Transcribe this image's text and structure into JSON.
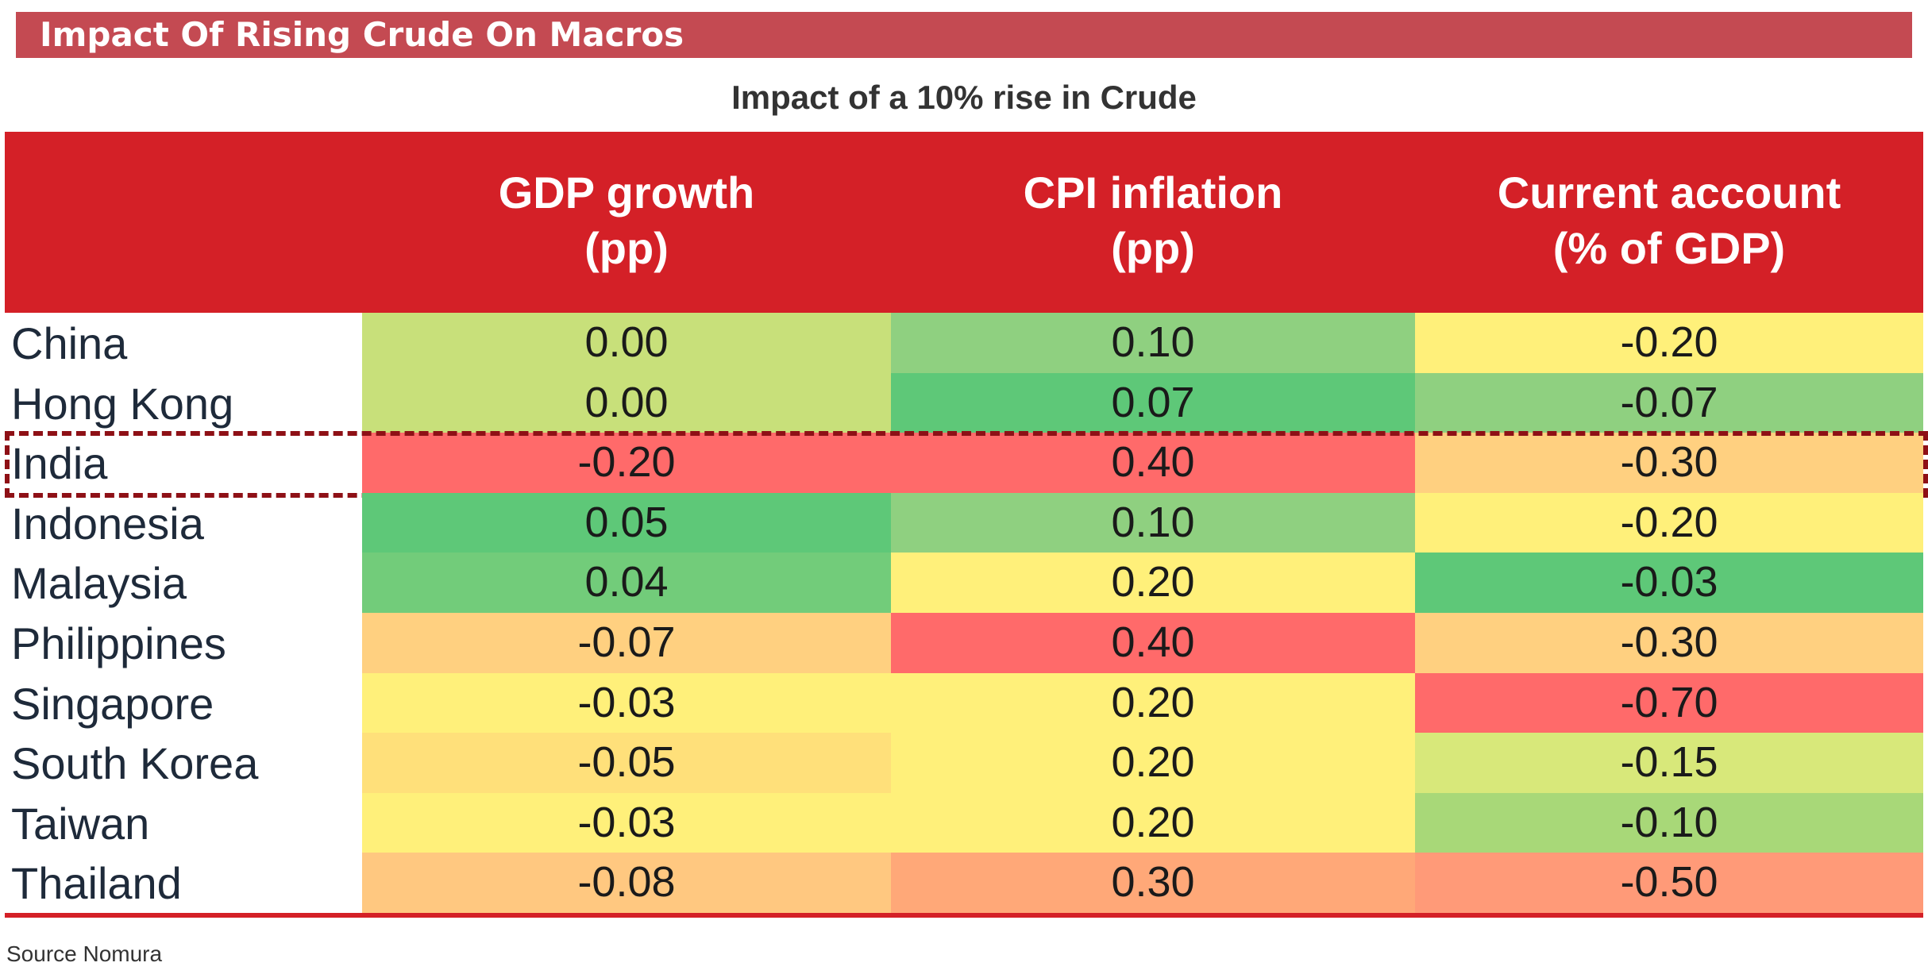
{
  "banner": {
    "title": "Impact Of Rising Crude On Macros"
  },
  "subtitle": "Impact of a 10% rise in Crude",
  "source": "Source Nomura",
  "colors": {
    "header_bg": "#d42027",
    "banner_bg": "#c44a52",
    "highlight_border": "#8e1016"
  },
  "highlighted_row": "India",
  "chart_data": {
    "type": "table",
    "title": "Impact of a 10% rise in Crude",
    "columns": [
      {
        "line1": "GDP growth",
        "line2": "(pp)"
      },
      {
        "line1": "CPI inflation",
        "line2": "(pp)"
      },
      {
        "line1": "Current account",
        "line2": "(% of GDP)"
      }
    ],
    "rows": [
      {
        "country": "China",
        "values": [
          "0.00",
          "0.10",
          "-0.20"
        ],
        "colors": [
          "#c8e07a",
          "#8fd080",
          "#fff07a"
        ]
      },
      {
        "country": "Hong Kong",
        "values": [
          "0.00",
          "0.07",
          "-0.07"
        ],
        "colors": [
          "#c8e07a",
          "#5ec878",
          "#8fd080"
        ]
      },
      {
        "country": "India",
        "values": [
          "-0.20",
          "0.40",
          "-0.30"
        ],
        "colors": [
          "#ff6a6a",
          "#ff6a6a",
          "#ffd080"
        ]
      },
      {
        "country": "Indonesia",
        "values": [
          "0.05",
          "0.10",
          "-0.20"
        ],
        "colors": [
          "#5ec878",
          "#8fd080",
          "#fff07a"
        ]
      },
      {
        "country": "Malaysia",
        "values": [
          "0.04",
          "0.20",
          "-0.03"
        ],
        "colors": [
          "#72cc7a",
          "#fff07a",
          "#5ec878"
        ]
      },
      {
        "country": "Philippines",
        "values": [
          "-0.07",
          "0.40",
          "-0.30"
        ],
        "colors": [
          "#ffd080",
          "#ff6a6a",
          "#ffd080"
        ]
      },
      {
        "country": "Singapore",
        "values": [
          "-0.03",
          "0.20",
          "-0.70"
        ],
        "colors": [
          "#fff07a",
          "#fff07a",
          "#ff6a6a"
        ]
      },
      {
        "country": "South Korea",
        "values": [
          "-0.05",
          "0.20",
          "-0.15"
        ],
        "colors": [
          "#ffe07a",
          "#fff07a",
          "#d8e87a"
        ]
      },
      {
        "country": "Taiwan",
        "values": [
          "-0.03",
          "0.20",
          "-0.10"
        ],
        "colors": [
          "#fff07a",
          "#fff07a",
          "#a8d878"
        ]
      },
      {
        "country": "Thailand",
        "values": [
          "-0.08",
          "0.30",
          "-0.50"
        ],
        "colors": [
          "#ffc880",
          "#ffa878",
          "#ff9a78"
        ]
      }
    ]
  }
}
